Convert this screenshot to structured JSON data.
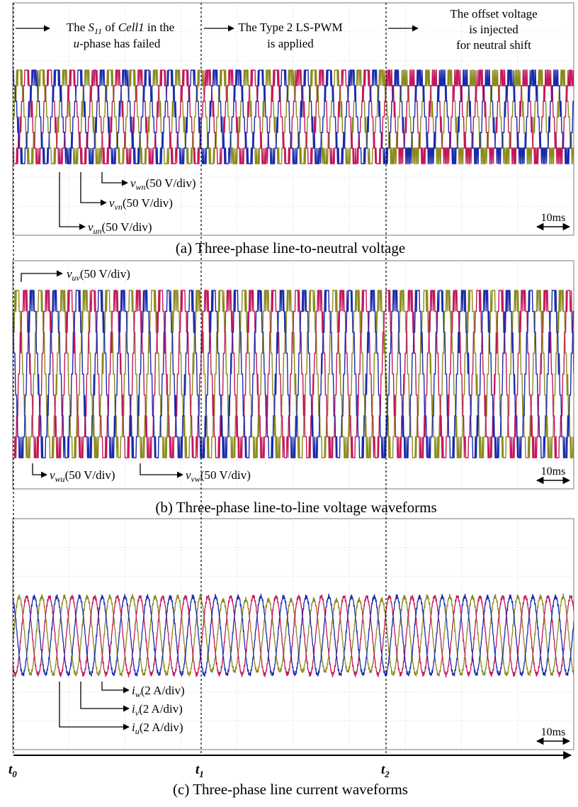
{
  "colors": {
    "u_phase": "#8a8a1e",
    "v_phase": "#c2185b",
    "w_phase": "#1a2aa8",
    "grid": "#c8c8c8",
    "frame": "#7a7a7a",
    "text": "#000000"
  },
  "annotations": {
    "event1": {
      "pre": "The ",
      "sym": "S",
      "sub": "11",
      "mid": " of ",
      "cell": "Cell1",
      "post": " in the",
      "line2_var": "u",
      "line2": "-phase has failed"
    },
    "event2": {
      "line1": "The Type 2 LS-PWM",
      "line2": "is applied"
    },
    "event3": {
      "line1": "The offset voltage",
      "line2": "is injected",
      "line3": "for neutral shift"
    }
  },
  "time_axis": {
    "t0": {
      "base": "t",
      "sub": "0"
    },
    "t1": {
      "base": "t",
      "sub": "1"
    },
    "t2": {
      "base": "t",
      "sub": "2"
    }
  },
  "chart_data": [
    {
      "type": "line",
      "panel": "a",
      "caption": "(a) Three-phase line-to-neutral voltage",
      "scale_bar": "10ms",
      "series": [
        {
          "name": "v_un",
          "base": "v",
          "sub": "un",
          "scale": "(50 V/div)",
          "color_key": "u_phase",
          "phase_deg": 0
        },
        {
          "name": "v_vn",
          "base": "v",
          "sub": "vn",
          "scale": "(50 V/div)",
          "color_key": "v_phase",
          "phase_deg": -120
        },
        {
          "name": "v_wn",
          "base": "v",
          "sub": "wn",
          "scale": "(50 V/div)",
          "color_key": "w_phase",
          "phase_deg": 120
        }
      ]
    },
    {
      "type": "line",
      "panel": "b",
      "caption": "(b) Three-phase line-to-line voltage waveforms",
      "scale_bar": "10ms",
      "series": [
        {
          "name": "v_uv",
          "base": "v",
          "sub": "uv",
          "scale": "(50 V/div)",
          "color_key": "u_phase",
          "phase_deg": 30
        },
        {
          "name": "v_vw",
          "base": "v",
          "sub": "vw",
          "scale": "(50 V/div)",
          "color_key": "v_phase",
          "phase_deg": -90
        },
        {
          "name": "v_wu",
          "base": "v",
          "sub": "wu",
          "scale": "(50 V/div)",
          "color_key": "w_phase",
          "phase_deg": 150
        }
      ]
    },
    {
      "type": "line",
      "panel": "c",
      "caption": "(c) Three-phase line current waveforms",
      "scale_bar": "10ms",
      "series": [
        {
          "name": "i_u",
          "base": "i",
          "sub": "u",
          "scale": "(2 A/div)",
          "color_key": "u_phase",
          "phase_deg": 0
        },
        {
          "name": "i_v",
          "base": "i",
          "sub": "v",
          "scale": "(2 A/div)",
          "color_key": "v_phase",
          "phase_deg": -120
        },
        {
          "name": "i_w",
          "base": "i",
          "sub": "w",
          "scale": "(2 A/div)",
          "color_key": "w_phase",
          "phase_deg": 120
        }
      ]
    }
  ]
}
